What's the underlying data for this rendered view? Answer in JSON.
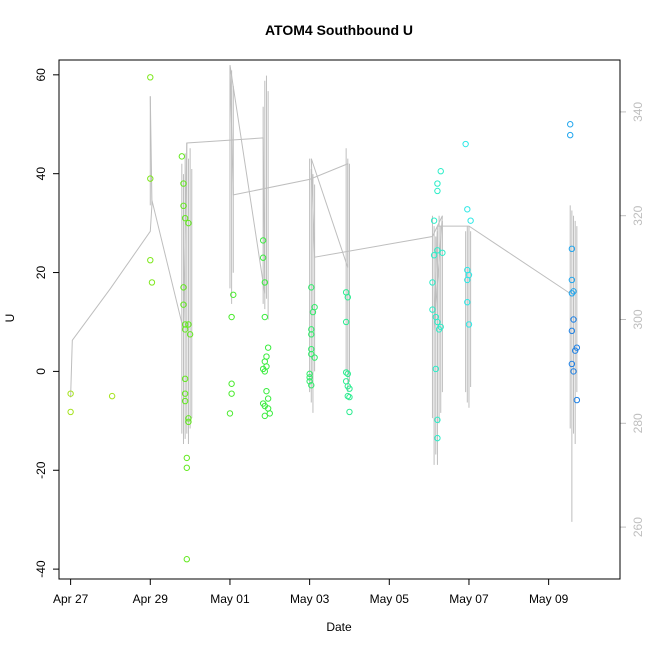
{
  "chart_data": {
    "type": "scatter",
    "title": "ATOM4 Southbound U",
    "xlabel": "Date",
    "ylabel": "U",
    "x_range": [
      "2023-04-26T17:00",
      "2023-05-10T19:00"
    ],
    "ylim": [
      -42,
      63
    ],
    "y2lim": [
      250,
      350
    ],
    "x_ticks": [
      {
        "date": "2023-04-27",
        "label": "Apr 27"
      },
      {
        "date": "2023-04-29",
        "label": "Apr 29"
      },
      {
        "date": "2023-05-01",
        "label": "May 01"
      },
      {
        "date": "2023-05-03",
        "label": "May 03"
      },
      {
        "date": "2023-05-05",
        "label": "May 05"
      },
      {
        "date": "2023-05-07",
        "label": "May 07"
      },
      {
        "date": "2023-05-09",
        "label": "May 09"
      }
    ],
    "y_ticks": [
      -40,
      -20,
      0,
      20,
      40,
      60
    ],
    "y2_ticks": [
      260,
      280,
      300,
      320,
      340
    ],
    "grid": false,
    "colors": {
      "line": "#bebebe",
      "axis": "#000000",
      "axis_right": "#bebebe"
    },
    "points": [
      {
        "x": "2023-04-27T00:00",
        "y": -4.5,
        "color": "#a6e31f"
      },
      {
        "x": "2023-04-27T00:00",
        "y": -8.2,
        "color": "#a6e31f"
      },
      {
        "x": "2023-04-28T01:00",
        "y": -5.0,
        "color": "#a6e31f"
      },
      {
        "x": "2023-04-29T00:00",
        "y": 59.5,
        "color": "#7ee81c"
      },
      {
        "x": "2023-04-29T00:00",
        "y": 39.0,
        "color": "#7ee81c"
      },
      {
        "x": "2023-04-29T00:00",
        "y": 22.5,
        "color": "#7ee81c"
      },
      {
        "x": "2023-04-29T01:00",
        "y": 18.0,
        "color": "#7ee81c"
      },
      {
        "x": "2023-04-29T19:00",
        "y": 43.5,
        "color": "#62ea1e"
      },
      {
        "x": "2023-04-29T20:00",
        "y": 38.0,
        "color": "#62ea1e"
      },
      {
        "x": "2023-04-29T20:00",
        "y": 33.5,
        "color": "#62ea1e"
      },
      {
        "x": "2023-04-29T21:00",
        "y": 31.0,
        "color": "#62ea1e"
      },
      {
        "x": "2023-04-29T23:00",
        "y": 30.0,
        "color": "#62ea1e"
      },
      {
        "x": "2023-04-29T20:00",
        "y": 17.0,
        "color": "#62ea1e"
      },
      {
        "x": "2023-04-29T20:00",
        "y": 13.5,
        "color": "#62ea1e"
      },
      {
        "x": "2023-04-29T21:00",
        "y": 9.5,
        "color": "#62ea1e"
      },
      {
        "x": "2023-04-29T21:00",
        "y": 8.5,
        "color": "#62ea1e"
      },
      {
        "x": "2023-04-29T23:00",
        "y": 9.5,
        "color": "#62ea1e"
      },
      {
        "x": "2023-04-30T00:00",
        "y": 7.5,
        "color": "#62ea1e"
      },
      {
        "x": "2023-04-29T21:00",
        "y": -1.5,
        "color": "#62ea1e"
      },
      {
        "x": "2023-04-29T21:00",
        "y": -4.5,
        "color": "#62ea1e"
      },
      {
        "x": "2023-04-29T21:00",
        "y": -6.0,
        "color": "#62ea1e"
      },
      {
        "x": "2023-04-29T23:00",
        "y": -9.5,
        "color": "#62ea1e"
      },
      {
        "x": "2023-04-29T23:00",
        "y": -10.2,
        "color": "#62ea1e"
      },
      {
        "x": "2023-04-29T22:00",
        "y": -17.5,
        "color": "#62ea1e"
      },
      {
        "x": "2023-04-29T22:00",
        "y": -19.5,
        "color": "#62ea1e"
      },
      {
        "x": "2023-04-29T22:00",
        "y": -38.0,
        "color": "#62ea1e"
      },
      {
        "x": "2023-05-01T02:00",
        "y": 15.5,
        "color": "#4aeb2e"
      },
      {
        "x": "2023-05-01T01:00",
        "y": 11.0,
        "color": "#4aeb2e"
      },
      {
        "x": "2023-05-01T01:00",
        "y": -2.5,
        "color": "#4aeb2e"
      },
      {
        "x": "2023-05-01T01:00",
        "y": -4.5,
        "color": "#4aeb2e"
      },
      {
        "x": "2023-05-01T00:00",
        "y": -8.5,
        "color": "#4aeb2e"
      },
      {
        "x": "2023-05-01T20:00",
        "y": 26.5,
        "color": "#3aec3e"
      },
      {
        "x": "2023-05-01T20:00",
        "y": 23.0,
        "color": "#3aec3e"
      },
      {
        "x": "2023-05-01T21:00",
        "y": 18.0,
        "color": "#3aec3e"
      },
      {
        "x": "2023-05-01T21:00",
        "y": 11.0,
        "color": "#3aec3e"
      },
      {
        "x": "2023-05-01T23:00",
        "y": 4.8,
        "color": "#3aec3e"
      },
      {
        "x": "2023-05-01T22:00",
        "y": 3.0,
        "color": "#3aec3e"
      },
      {
        "x": "2023-05-01T21:00",
        "y": 2.0,
        "color": "#3aec3e"
      },
      {
        "x": "2023-05-01T22:00",
        "y": 1.0,
        "color": "#3aec3e"
      },
      {
        "x": "2023-05-01T20:00",
        "y": 0.5,
        "color": "#3aec3e"
      },
      {
        "x": "2023-05-01T21:00",
        "y": 0.0,
        "color": "#3aec3e"
      },
      {
        "x": "2023-05-01T22:00",
        "y": -4.0,
        "color": "#3aec3e"
      },
      {
        "x": "2023-05-01T23:00",
        "y": -5.5,
        "color": "#3aec3e"
      },
      {
        "x": "2023-05-01T20:00",
        "y": -6.5,
        "color": "#3aec3e"
      },
      {
        "x": "2023-05-01T21:00",
        "y": -7.0,
        "color": "#3aec3e"
      },
      {
        "x": "2023-05-01T23:00",
        "y": -7.5,
        "color": "#3aec3e"
      },
      {
        "x": "2023-05-02T00:00",
        "y": -8.5,
        "color": "#3aec3e"
      },
      {
        "x": "2023-05-01T21:00",
        "y": -9.0,
        "color": "#3aec3e"
      },
      {
        "x": "2023-05-03T01:00",
        "y": 17.0,
        "color": "#30ed6a"
      },
      {
        "x": "2023-05-03T03:00",
        "y": 13.0,
        "color": "#30ed6a"
      },
      {
        "x": "2023-05-03T02:00",
        "y": 12.0,
        "color": "#30ed6a"
      },
      {
        "x": "2023-05-03T01:00",
        "y": 8.5,
        "color": "#30ed6a"
      },
      {
        "x": "2023-05-03T01:00",
        "y": 7.5,
        "color": "#30ed6a"
      },
      {
        "x": "2023-05-03T01:00",
        "y": 4.5,
        "color": "#30ed6a"
      },
      {
        "x": "2023-05-03T01:00",
        "y": 3.5,
        "color": "#30ed6a"
      },
      {
        "x": "2023-05-03T03:00",
        "y": 2.8,
        "color": "#30ed6a"
      },
      {
        "x": "2023-05-03T00:00",
        "y": -0.5,
        "color": "#30ed6a"
      },
      {
        "x": "2023-05-03T00:00",
        "y": -1.2,
        "color": "#30ed6a"
      },
      {
        "x": "2023-05-03T00:00",
        "y": -2.0,
        "color": "#30ed6a"
      },
      {
        "x": "2023-05-03T01:00",
        "y": -2.8,
        "color": "#30ed6a"
      },
      {
        "x": "2023-05-03T22:00",
        "y": 16.0,
        "color": "#2cec90"
      },
      {
        "x": "2023-05-03T23:00",
        "y": 15.0,
        "color": "#2cec90"
      },
      {
        "x": "2023-05-03T22:00",
        "y": 10.0,
        "color": "#2cec90"
      },
      {
        "x": "2023-05-03T22:00",
        "y": -0.2,
        "color": "#2cec90"
      },
      {
        "x": "2023-05-03T23:00",
        "y": -0.5,
        "color": "#2cec90"
      },
      {
        "x": "2023-05-03T22:00",
        "y": -2.0,
        "color": "#2cec90"
      },
      {
        "x": "2023-05-03T23:00",
        "y": -3.0,
        "color": "#2cec90"
      },
      {
        "x": "2023-05-04T00:00",
        "y": -3.5,
        "color": "#2cec90"
      },
      {
        "x": "2023-05-03T23:00",
        "y": -5.0,
        "color": "#2cec90"
      },
      {
        "x": "2023-05-04T00:00",
        "y": -5.2,
        "color": "#2cec90"
      },
      {
        "x": "2023-05-04T00:00",
        "y": -8.2,
        "color": "#2cec90"
      },
      {
        "x": "2023-05-06T07:00",
        "y": 40.5,
        "color": "#2deec9"
      },
      {
        "x": "2023-05-06T05:00",
        "y": 38.0,
        "color": "#2deec9"
      },
      {
        "x": "2023-05-06T05:00",
        "y": 36.5,
        "color": "#2deec9"
      },
      {
        "x": "2023-05-06T03:00",
        "y": 30.5,
        "color": "#2deec9"
      },
      {
        "x": "2023-05-06T05:00",
        "y": 24.5,
        "color": "#2deec9"
      },
      {
        "x": "2023-05-06T03:00",
        "y": 23.5,
        "color": "#2deec9"
      },
      {
        "x": "2023-05-06T08:00",
        "y": 24.0,
        "color": "#2deec9"
      },
      {
        "x": "2023-05-06T02:00",
        "y": 18.0,
        "color": "#2deec9"
      },
      {
        "x": "2023-05-06T02:00",
        "y": 12.5,
        "color": "#2deec9"
      },
      {
        "x": "2023-05-06T04:00",
        "y": 11.0,
        "color": "#2deec9"
      },
      {
        "x": "2023-05-06T05:00",
        "y": 10.0,
        "color": "#2deec9"
      },
      {
        "x": "2023-05-06T07:00",
        "y": 9.0,
        "color": "#2deec9"
      },
      {
        "x": "2023-05-06T06:00",
        "y": 8.5,
        "color": "#2deec9"
      },
      {
        "x": "2023-05-06T04:00",
        "y": 0.5,
        "color": "#2deec9"
      },
      {
        "x": "2023-05-06T05:00",
        "y": -9.8,
        "color": "#2deec9"
      },
      {
        "x": "2023-05-06T05:00",
        "y": -13.5,
        "color": "#2deec9"
      },
      {
        "x": "2023-05-06T22:00",
        "y": 46.0,
        "color": "#2ee8e6"
      },
      {
        "x": "2023-05-06T23:00",
        "y": 32.8,
        "color": "#2ee8e6"
      },
      {
        "x": "2023-05-07T01:00",
        "y": 30.5,
        "color": "#2ee8e6"
      },
      {
        "x": "2023-05-06T23:00",
        "y": 20.5,
        "color": "#2ee8e6"
      },
      {
        "x": "2023-05-07T00:00",
        "y": 19.5,
        "color": "#2ee8e6"
      },
      {
        "x": "2023-05-06T23:00",
        "y": 18.5,
        "color": "#2ee8e6"
      },
      {
        "x": "2023-05-06T23:00",
        "y": 14.0,
        "color": "#2ee8e6"
      },
      {
        "x": "2023-05-07T00:00",
        "y": 9.5,
        "color": "#2ee8e6"
      },
      {
        "x": "2023-05-09T13:00",
        "y": 50.0,
        "color": "#21a6ee"
      },
      {
        "x": "2023-05-09T13:00",
        "y": 47.8,
        "color": "#21a6ee"
      },
      {
        "x": "2023-05-09T14:00",
        "y": 24.8,
        "color": "#21a6ee"
      },
      {
        "x": "2023-05-09T14:00",
        "y": 18.5,
        "color": "#21a6ee"
      },
      {
        "x": "2023-05-09T15:00",
        "y": 16.2,
        "color": "#21a6ee"
      },
      {
        "x": "2023-05-09T14:00",
        "y": 15.8,
        "color": "#21a6ee"
      },
      {
        "x": "2023-05-09T15:00",
        "y": 10.5,
        "color": "#1f82e6"
      },
      {
        "x": "2023-05-09T14:00",
        "y": 8.2,
        "color": "#1f82e6"
      },
      {
        "x": "2023-05-09T17:00",
        "y": 4.8,
        "color": "#1f82e6"
      },
      {
        "x": "2023-05-09T16:00",
        "y": 4.2,
        "color": "#1f82e6"
      },
      {
        "x": "2023-05-09T14:00",
        "y": 1.5,
        "color": "#1f82e6"
      },
      {
        "x": "2023-05-09T15:00",
        "y": 0.0,
        "color": "#1f82e6"
      },
      {
        "x": "2023-05-09T17:00",
        "y": -5.8,
        "color": "#1f82e6"
      }
    ],
    "line_series": {
      "axis": "right",
      "points": [
        {
          "x": "2023-04-27T00:00",
          "y": 285
        },
        {
          "x": "2023-04-27T01:00",
          "y": 296
        },
        {
          "x": "2023-04-28T00:00",
          "y": 306
        },
        {
          "x": "2023-04-29T00:00",
          "y": 317
        },
        {
          "x": "2023-04-29T01:00",
          "y": 322
        },
        {
          "x": "2023-04-29T00:00",
          "y": 343
        },
        {
          "x": "2023-04-29T01:00",
          "y": 323
        },
        {
          "x": "2023-04-29T20:00",
          "y": 298
        },
        {
          "x": "2023-04-29T22:00",
          "y": 334
        },
        {
          "x": "2023-05-01T20:00",
          "y": 335
        },
        {
          "x": "2023-05-01T21:00",
          "y": 305
        },
        {
          "x": "2023-05-01T00:00",
          "y": 349
        },
        {
          "x": "2023-05-01T02:00",
          "y": 324
        },
        {
          "x": "2023-05-03T00:00",
          "y": 327
        },
        {
          "x": "2023-05-03T23:00",
          "y": 330
        },
        {
          "x": "2023-05-03T23:00",
          "y": 310
        },
        {
          "x": "2023-05-03T01:00",
          "y": 331
        },
        {
          "x": "2023-05-03T03:00",
          "y": 312
        },
        {
          "x": "2023-05-06T02:00",
          "y": 316
        },
        {
          "x": "2023-05-06T05:00",
          "y": 318
        },
        {
          "x": "2023-05-06T08:00",
          "y": 320
        },
        {
          "x": "2023-05-06T03:00",
          "y": 298
        },
        {
          "x": "2023-05-06T05:00",
          "y": 318
        },
        {
          "x": "2023-05-07T00:00",
          "y": 318
        },
        {
          "x": "2023-05-09T13:00",
          "y": 305
        }
      ]
    },
    "line_spikes": [
      {
        "x": "2023-04-29T00:00",
        "low": 322,
        "high": 343
      },
      {
        "x": "2023-04-29T19:00",
        "low": 278,
        "high": 330
      },
      {
        "x": "2023-04-29T20:00",
        "low": 276,
        "high": 328
      },
      {
        "x": "2023-04-29T21:00",
        "low": 277,
        "high": 332
      },
      {
        "x": "2023-04-29T22:00",
        "low": 278,
        "high": 334
      },
      {
        "x": "2023-04-29T23:00",
        "low": 276,
        "high": 331
      },
      {
        "x": "2023-04-30T00:00",
        "low": 279,
        "high": 333
      },
      {
        "x": "2023-04-30T01:00",
        "low": 281,
        "high": 329
      },
      {
        "x": "2023-05-01T00:00",
        "low": 306,
        "high": 349
      },
      {
        "x": "2023-05-01T01:00",
        "low": 303,
        "high": 348
      },
      {
        "x": "2023-05-01T02:00",
        "low": 309,
        "high": 345
      },
      {
        "x": "2023-05-01T20:00",
        "low": 303,
        "high": 341
      },
      {
        "x": "2023-05-01T21:00",
        "low": 302,
        "high": 346
      },
      {
        "x": "2023-05-01T22:00",
        "low": 304,
        "high": 347
      },
      {
        "x": "2023-05-01T23:00",
        "low": 300,
        "high": 344
      },
      {
        "x": "2023-05-03T00:00",
        "low": 286,
        "high": 331
      },
      {
        "x": "2023-05-03T01:00",
        "low": 284,
        "high": 329
      },
      {
        "x": "2023-05-03T02:00",
        "low": 282,
        "high": 328
      },
      {
        "x": "2023-05-03T03:00",
        "low": 290,
        "high": 326
      },
      {
        "x": "2023-05-03T22:00",
        "low": 290,
        "high": 333
      },
      {
        "x": "2023-05-03T23:00",
        "low": 286,
        "high": 331
      },
      {
        "x": "2023-05-04T00:00",
        "low": 288,
        "high": 330
      },
      {
        "x": "2023-05-06T02:00",
        "low": 281,
        "high": 320
      },
      {
        "x": "2023-05-06T03:00",
        "low": 272,
        "high": 318
      },
      {
        "x": "2023-05-06T04:00",
        "low": 274,
        "high": 316
      },
      {
        "x": "2023-05-06T05:00",
        "low": 272,
        "high": 317
      },
      {
        "x": "2023-05-06T06:00",
        "low": 280,
        "high": 320
      },
      {
        "x": "2023-05-06T07:00",
        "low": 282,
        "high": 318
      },
      {
        "x": "2023-05-06T08:00",
        "low": 286,
        "high": 319
      },
      {
        "x": "2023-05-06T22:00",
        "low": 286,
        "high": 317
      },
      {
        "x": "2023-05-06T23:00",
        "low": 284,
        "high": 318
      },
      {
        "x": "2023-05-07T00:00",
        "low": 283,
        "high": 318
      },
      {
        "x": "2023-05-07T01:00",
        "low": 287,
        "high": 317
      },
      {
        "x": "2023-05-09T13:00",
        "low": 279,
        "high": 322
      },
      {
        "x": "2023-05-09T14:00",
        "low": 261,
        "high": 321
      },
      {
        "x": "2023-05-09T15:00",
        "low": 278,
        "high": 320
      },
      {
        "x": "2023-05-09T16:00",
        "low": 276,
        "high": 319
      },
      {
        "x": "2023-05-09T17:00",
        "low": 286,
        "high": 318
      }
    ]
  }
}
